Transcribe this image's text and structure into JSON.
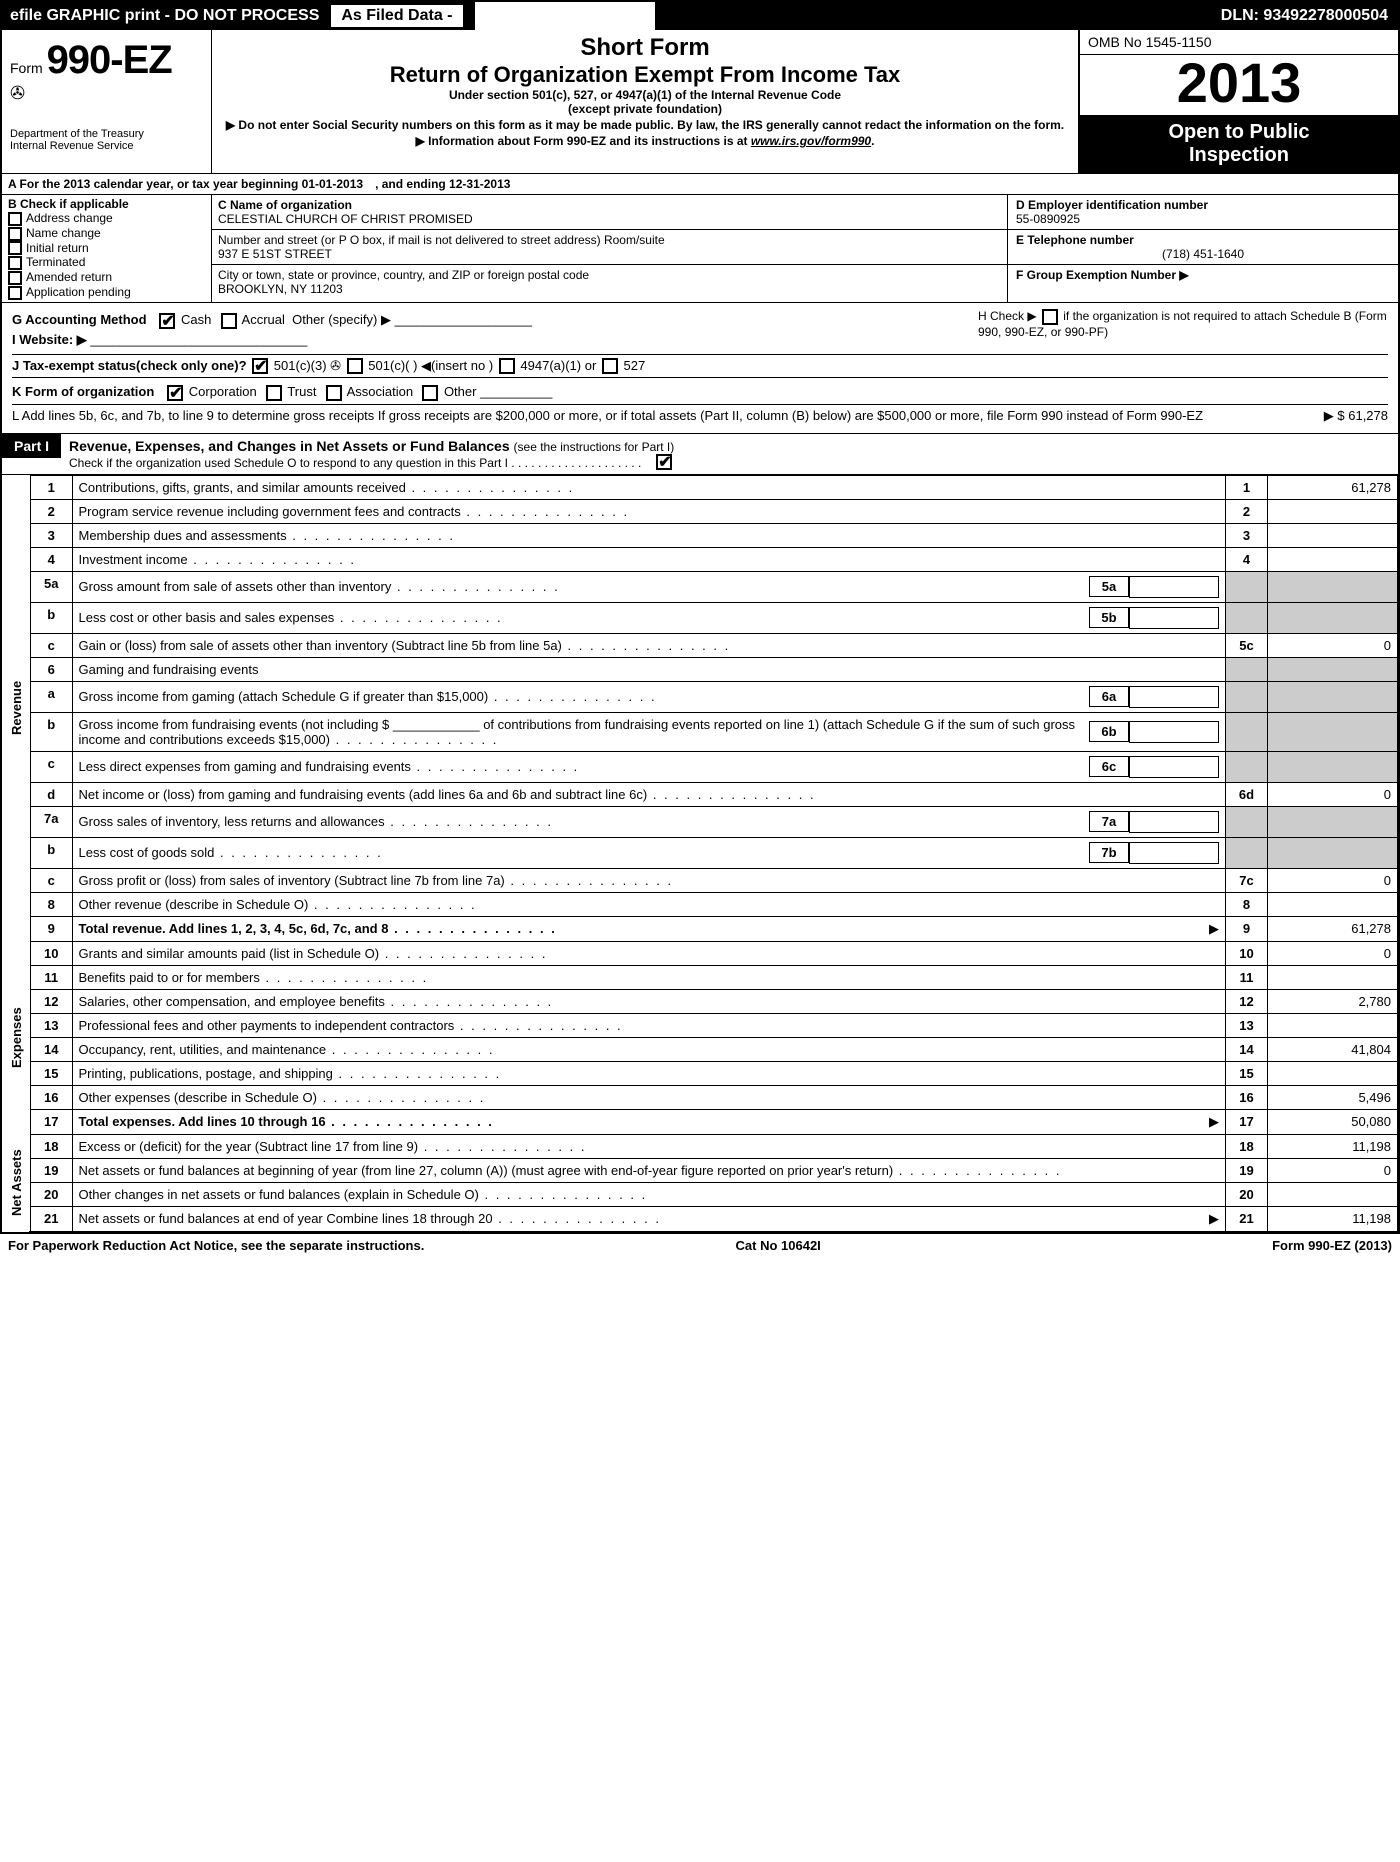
{
  "topbar": {
    "left": "efile GRAPHIC print - DO NOT PROCESS",
    "mid": "As Filed Data -",
    "right": "DLN: 93492278000504"
  },
  "header": {
    "form_prefix": "Form",
    "form_number": "990-EZ",
    "dept1": "Department of the Treasury",
    "dept2": "Internal Revenue Service",
    "title1": "Short Form",
    "title2": "Return of Organization Exempt From Income Tax",
    "title3": "Under section 501(c), 527, or 4947(a)(1) of the Internal Revenue Code",
    "title4": "(except private foundation)",
    "warn1": "▶ Do not enter Social Security numbers on this form as it may be made public. By law, the IRS generally cannot redact the information on the form.",
    "warn2": "▶ Information about Form 990-EZ and its instructions is at ",
    "warn2_link": "www.irs.gov/form990",
    "omb": "OMB No  1545-1150",
    "year": "2013",
    "inspect1": "Open to Public",
    "inspect2": "Inspection"
  },
  "lineA": {
    "label": "A  For the 2013 calendar year, or tax year beginning 01-01-2013",
    "ending": ", and ending 12-31-2013"
  },
  "secB": {
    "title": "B  Check if applicable",
    "items": [
      "Address change",
      "Name change",
      "Initial return",
      "Terminated",
      "Amended return",
      "Application pending"
    ]
  },
  "secC": {
    "name_label": "C Name of organization",
    "name": "CELESTIAL CHURCH OF CHRIST PROMISED",
    "street_label": "Number and street (or P  O  box, if mail is not delivered to street address) Room/suite",
    "street": "937 E 51ST STREET",
    "city_label": "City or town, state or province, country, and ZIP or foreign postal code",
    "city": "BROOKLYN, NY  11203"
  },
  "secDE": {
    "d_label": "D Employer identification number",
    "d_val": "55-0890925",
    "e_label": "E Telephone number",
    "e_val": "(718) 451-1640",
    "f_label": "F Group Exemption Number   ▶"
  },
  "secG": {
    "label": "G Accounting Method",
    "cash": "Cash",
    "accrual": "Accrual",
    "other": "Other (specify) ▶"
  },
  "secH": {
    "text": "H  Check ▶",
    "text2": "if the organization is not required to attach Schedule B (Form 990, 990-EZ, or 990-PF)"
  },
  "secI": {
    "label": "I Website: ▶"
  },
  "secJ": {
    "label": "J Tax-exempt status(check only one)?",
    "o1": "501(c)(3)",
    "o2": "501(c)(  )  ◀(insert no )",
    "o3": "4947(a)(1) or",
    "o4": "527"
  },
  "secK": {
    "label": "K Form of organization",
    "corp": "Corporation",
    "trust": "Trust",
    "assoc": "Association",
    "other": "Other"
  },
  "secL": {
    "text": "L Add lines 5b, 6c, and 7b, to line 9 to determine gross receipts  If gross receipts are $200,000 or more, or if total assets (Part II, column (B) below) are $500,000 or more, file Form 990 instead of Form 990-EZ",
    "amt": "▶ $ 61,278"
  },
  "part1": {
    "tag": "Part I",
    "title": "Revenue, Expenses, and Changes in Net Assets or Fund Balances",
    "sub": "(see the instructions for Part I)",
    "check": "Check if the organization used Schedule O to respond to any question in this Part I  .  .  .  .  .  .  .  .  .  .  .  .  .  .  .  .  .  .  .  ."
  },
  "vlabels": {
    "rev": "Revenue",
    "exp": "Expenses",
    "net": "Net Assets"
  },
  "rows": [
    {
      "n": "1",
      "d": "Contributions, gifts, grants, and similar amounts received",
      "bn": "1",
      "amt": "61,278"
    },
    {
      "n": "2",
      "d": "Program service revenue including government fees and contracts",
      "bn": "2",
      "amt": ""
    },
    {
      "n": "3",
      "d": "Membership dues and assessments",
      "bn": "3",
      "amt": ""
    },
    {
      "n": "4",
      "d": "Investment income",
      "bn": "4",
      "amt": ""
    },
    {
      "n": "5a",
      "d": "Gross amount from sale of assets other than inventory",
      "sn": "5a"
    },
    {
      "n": "b",
      "d": "Less  cost or other basis and sales expenses",
      "sn": "5b"
    },
    {
      "n": "c",
      "d": "Gain or (loss) from sale of assets other than inventory (Subtract line 5b from line 5a)",
      "bn": "5c",
      "amt": "0"
    },
    {
      "n": "6",
      "d": "Gaming and fundraising events"
    },
    {
      "n": "a",
      "d": "Gross income from gaming (attach Schedule G if greater than $15,000)",
      "sn": "6a"
    },
    {
      "n": "b",
      "d": "Gross income from fundraising events (not including $ ____________ of contributions from fundraising events reported on line 1) (attach Schedule G if the sum of such gross income and contributions exceeds $15,000)",
      "sn": "6b"
    },
    {
      "n": "c",
      "d": "Less  direct expenses from gaming and fundraising events",
      "sn": "6c"
    },
    {
      "n": "d",
      "d": "Net income or (loss) from gaming and fundraising events (add lines 6a and 6b and subtract line 6c)",
      "bn": "6d",
      "amt": "0"
    },
    {
      "n": "7a",
      "d": "Gross sales of inventory, less returns and allowances",
      "sn": "7a"
    },
    {
      "n": "b",
      "d": "Less  cost of goods sold",
      "sn": "7b"
    },
    {
      "n": "c",
      "d": "Gross profit or (loss) from sales of inventory (Subtract line 7b from line 7a)",
      "bn": "7c",
      "amt": "0"
    },
    {
      "n": "8",
      "d": "Other revenue (describe in Schedule O)",
      "bn": "8",
      "amt": ""
    },
    {
      "n": "9",
      "d": "Total revenue. Add lines 1, 2, 3, 4, 5c, 6d, 7c, and 8",
      "bn": "9",
      "amt": "61,278",
      "bold": true,
      "arrow": true
    },
    {
      "n": "10",
      "d": "Grants and similar amounts paid (list in Schedule O)",
      "bn": "10",
      "amt": "0"
    },
    {
      "n": "11",
      "d": "Benefits paid to or for members",
      "bn": "11",
      "amt": ""
    },
    {
      "n": "12",
      "d": "Salaries, other compensation, and employee benefits",
      "bn": "12",
      "amt": "2,780"
    },
    {
      "n": "13",
      "d": "Professional fees and other payments to independent contractors",
      "bn": "13",
      "amt": ""
    },
    {
      "n": "14",
      "d": "Occupancy, rent, utilities, and maintenance",
      "bn": "14",
      "amt": "41,804"
    },
    {
      "n": "15",
      "d": "Printing, publications, postage, and shipping",
      "bn": "15",
      "amt": ""
    },
    {
      "n": "16",
      "d": "Other expenses (describe in Schedule O)",
      "bn": "16",
      "amt": "5,496"
    },
    {
      "n": "17",
      "d": "Total expenses. Add lines 10 through 16",
      "bn": "17",
      "amt": "50,080",
      "bold": true,
      "arrow": true
    },
    {
      "n": "18",
      "d": "Excess or (deficit) for the year (Subtract line 17 from line 9)",
      "bn": "18",
      "amt": "11,198"
    },
    {
      "n": "19",
      "d": "Net assets or fund balances at beginning of year (from line 27, column (A)) (must agree with end-of-year figure reported on prior year's return)",
      "bn": "19",
      "amt": "0"
    },
    {
      "n": "20",
      "d": "Other changes in net assets or fund balances (explain in Schedule O)",
      "bn": "20",
      "amt": ""
    },
    {
      "n": "21",
      "d": "Net assets or fund balances at end of year  Combine lines 18 through 20",
      "bn": "21",
      "amt": "11,198",
      "arrow": true
    }
  ],
  "footer": {
    "l": "For Paperwork Reduction Act Notice, see the separate instructions.",
    "c": "Cat  No  10642I",
    "r": "Form 990-EZ (2013)"
  }
}
